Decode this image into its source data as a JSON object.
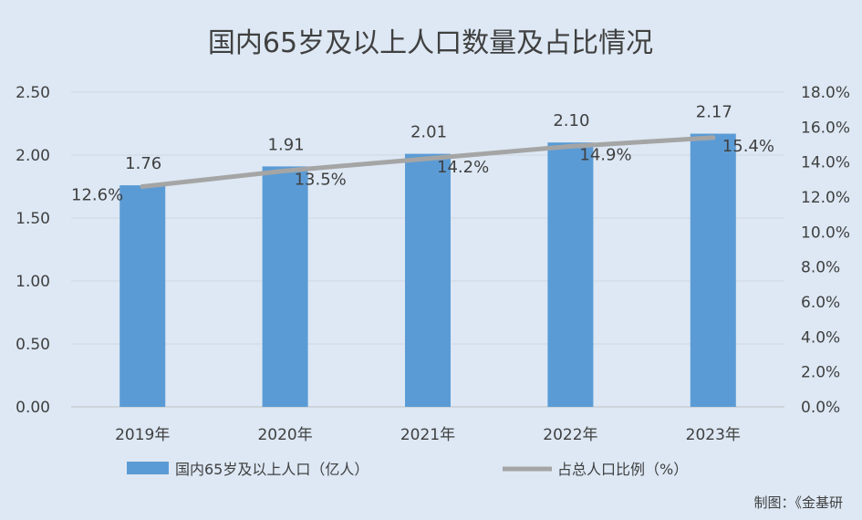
{
  "chart_data": {
    "type": "bar",
    "title": "国内65岁及以上人口数量及占比情况",
    "categories": [
      "2019年",
      "2020年",
      "2021年",
      "2022年",
      "2023年"
    ],
    "series": [
      {
        "name": "国内65岁及以上人口（亿人）",
        "type": "bar",
        "axis": "left",
        "values": [
          1.76,
          1.91,
          2.01,
          2.1,
          2.17
        ],
        "labels": [
          "1.76",
          "1.91",
          "2.01",
          "2.10",
          "2.17"
        ],
        "color": "#5b9bd5"
      },
      {
        "name": "占总人口比例（%）",
        "type": "line",
        "axis": "right",
        "values": [
          12.6,
          13.5,
          14.2,
          14.9,
          15.4
        ],
        "labels": [
          "12.6%",
          "13.5%",
          "14.2%",
          "14.9%",
          "15.4%"
        ],
        "color": "#a5a5a5"
      }
    ],
    "y_left": {
      "min": 0,
      "max": 2.5,
      "ticks": [
        "0.00",
        "0.50",
        "1.00",
        "1.50",
        "2.00",
        "2.50"
      ]
    },
    "y_right": {
      "min": 0,
      "max": 18,
      "ticks": [
        "0.0%",
        "2.0%",
        "4.0%",
        "6.0%",
        "8.0%",
        "10.0%",
        "12.0%",
        "14.0%",
        "16.0%",
        "18.0%"
      ]
    },
    "grid": true,
    "legend_position": "bottom",
    "source": "制图：《金基研"
  }
}
